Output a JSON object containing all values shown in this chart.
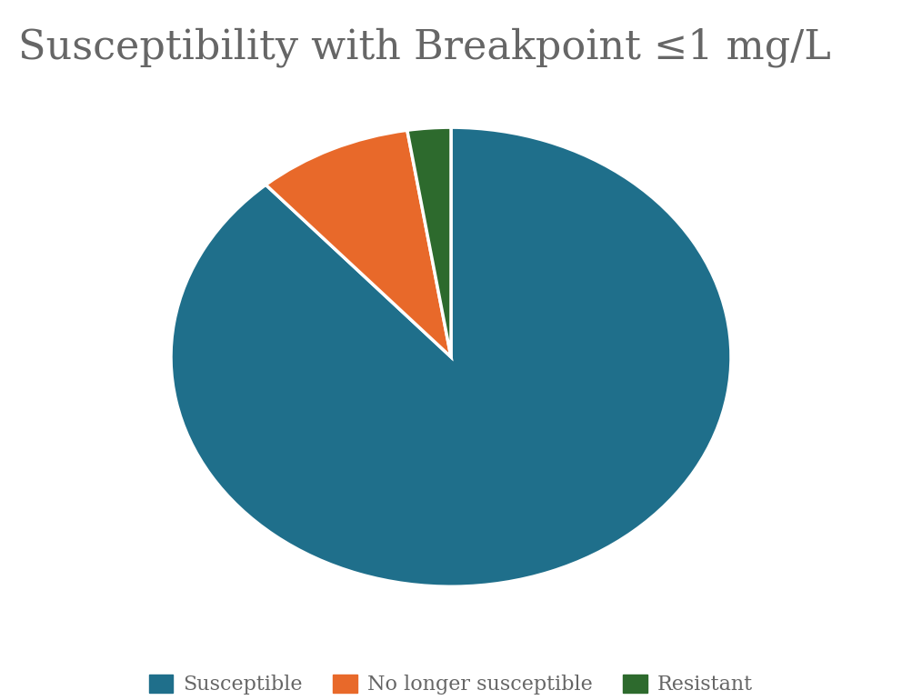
{
  "title": "Susceptibility with Breakpoint ≤1 mg/L",
  "slices": [
    88.5,
    9.0,
    2.5
  ],
  "labels": [
    "Susceptible",
    "No longer susceptible",
    "Resistant"
  ],
  "colors": [
    "#1f6f8b",
    "#e8692a",
    "#2d6a2d"
  ],
  "startangle": 90,
  "title_color": "#666666",
  "title_fontsize": 32,
  "legend_fontsize": 16,
  "background_color": "#ffffff"
}
